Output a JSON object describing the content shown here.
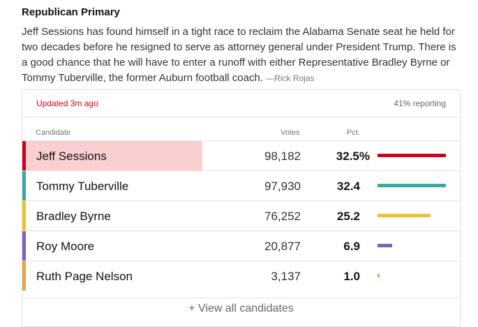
{
  "header": {
    "title": "Republican Primary",
    "intro": "Jeff Sessions has found himself in a tight race to reclaim the Alabama Senate seat he held for two decades before he resigned to serve as attorney general under President Trump. There is a good chance that he will have to enter a runoff with either Representative Bradley Byrne or Tommy Tuberville, the former Auburn football coach.",
    "byline": "—Rick Rojas"
  },
  "status": {
    "updated": "Updated 3m ago",
    "reporting": "41% reporting"
  },
  "columns": {
    "candidate": "Candidate",
    "votes": "Votes",
    "pct": "Pct."
  },
  "candidates": [
    {
      "name": "Jeff Sessions",
      "votes": "98,182",
      "pct": "32.5%",
      "share": 32.5,
      "color": "#d0021b",
      "leader": true
    },
    {
      "name": "Tommy Tuberville",
      "votes": "97,930",
      "pct": "32.4",
      "share": 32.4,
      "color": "#3aa9a6",
      "leader": false
    },
    {
      "name": "Bradley Byrne",
      "votes": "76,252",
      "pct": "25.2",
      "share": 25.2,
      "color": "#e9c232",
      "leader": false
    },
    {
      "name": "Roy Moore",
      "votes": "20,877",
      "pct": "6.9",
      "share": 6.9,
      "color": "#7a63bf",
      "leader": false
    },
    {
      "name": "Ruth Page Nelson",
      "votes": "3,137",
      "pct": "1.0",
      "share": 1.0,
      "color": "#eba04a",
      "leader": false
    }
  ],
  "footer": {
    "view_all": "+ View all candidates"
  }
}
